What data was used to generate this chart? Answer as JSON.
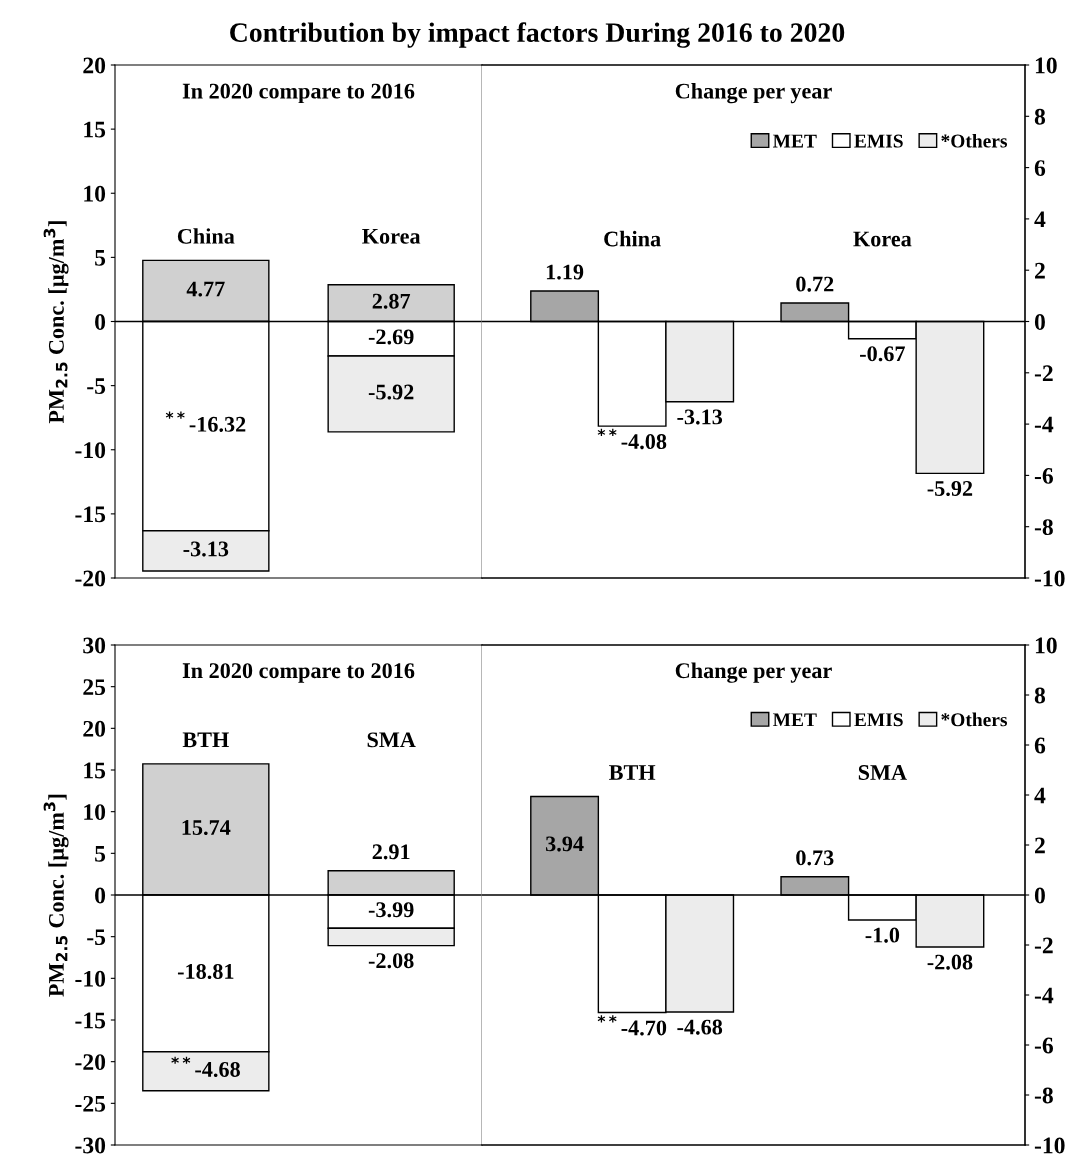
{
  "chart_data": [
    {
      "type": "bar",
      "stacked": true,
      "title": "In 2020 compare to 2016",
      "ylabel": "PM$_{2.5}$ Conc. [µg/m$^{3}$]",
      "categories": [
        "China",
        "Korea"
      ],
      "ylim": [
        -20,
        20
      ],
      "yticks": [
        -20,
        -15,
        -10,
        -5,
        0,
        5,
        10,
        15,
        20
      ],
      "series": [
        {
          "color": "#d0d0d0",
          "values": [
            4.77,
            2.87
          ],
          "value_labels": [
            "4.77",
            "2.87"
          ]
        },
        {
          "color": "#ffffff",
          "values": [
            -16.32,
            -2.69
          ],
          "value_labels": [
            "$^{**}$-16.32",
            "-2.69"
          ]
        },
        {
          "color": "#ececec",
          "values": [
            -3.13,
            -5.92
          ],
          "value_labels": [
            "-3.13",
            "-5.92"
          ]
        }
      ],
      "annotations": [
        "Contribution by impact factors During 2016 to 2020"
      ]
    },
    {
      "type": "bar",
      "title": "Change per year",
      "categories": [
        "China",
        "Korea"
      ],
      "y2lim": [
        -10,
        10
      ],
      "y2ticks": [
        -10,
        -8,
        -6,
        -4,
        -2,
        0,
        2,
        4,
        6,
        8,
        10
      ],
      "legend": "top right",
      "series": [
        {
          "name": "MET",
          "axis": "y2",
          "color": "#a6a6a6",
          "values": [
            1.19,
            0.72
          ],
          "value_labels": [
            "1.19",
            "0.72"
          ]
        },
        {
          "name": "EMIS",
          "axis": "y2",
          "color": "#ffffff",
          "values": [
            -4.08,
            -0.67
          ],
          "value_labels": [
            "$^{**}$-4.08",
            "-0.67"
          ]
        },
        {
          "name": "*Others",
          "axis": "y2",
          "color": "#ececec",
          "values": [
            -3.13,
            -5.92
          ],
          "value_labels": [
            "-3.13",
            "-5.92"
          ]
        }
      ]
    },
    {
      "type": "bar",
      "stacked": true,
      "title": "In 2020 compare to 2016",
      "ylabel": "PM$_{2.5}$ Conc. [µg/m$^{3}$]",
      "categories": [
        "BTH",
        "SMA"
      ],
      "ylim": [
        -30,
        30
      ],
      "yticks": [
        -30,
        -25,
        -20,
        -15,
        -10,
        -5,
        0,
        5,
        10,
        15,
        20,
        25,
        30
      ],
      "series": [
        {
          "color": "#d0d0d0",
          "values": [
            15.74,
            2.91
          ],
          "value_labels": [
            "15.74",
            "2.91"
          ]
        },
        {
          "color": "#ffffff",
          "values": [
            -18.81,
            -3.99
          ],
          "value_labels": [
            "-18.81",
            "-3.99"
          ]
        },
        {
          "color": "#ececec",
          "values": [
            -4.68,
            -2.08
          ],
          "value_labels": [
            "$^{**}$-4.68",
            "-2.08"
          ]
        }
      ]
    },
    {
      "type": "bar",
      "title": "Change per year",
      "categories": [
        "BTH",
        "SMA"
      ],
      "y2lim": [
        -10,
        10
      ],
      "y2ticks": [
        -10,
        -8,
        -6,
        -4,
        -2,
        0,
        2,
        4,
        6,
        8,
        10
      ],
      "legend": "top right",
      "series": [
        {
          "name": "MET",
          "axis": "y2",
          "color": "#a6a6a6",
          "values": [
            3.94,
            0.73
          ],
          "value_labels": [
            "3.94",
            "0.73"
          ]
        },
        {
          "name": "EMIS",
          "axis": "y2",
          "color": "#ffffff",
          "values": [
            -4.7,
            -1.0
          ],
          "value_labels": [
            "$^{**}$-4.70",
            "-1.0"
          ]
        },
        {
          "name": "*Others",
          "axis": "y2",
          "color": "#ececec",
          "values": [
            -4.68,
            -2.08
          ],
          "value_labels": [
            "-4.68",
            "-2.08"
          ]
        }
      ]
    }
  ]
}
